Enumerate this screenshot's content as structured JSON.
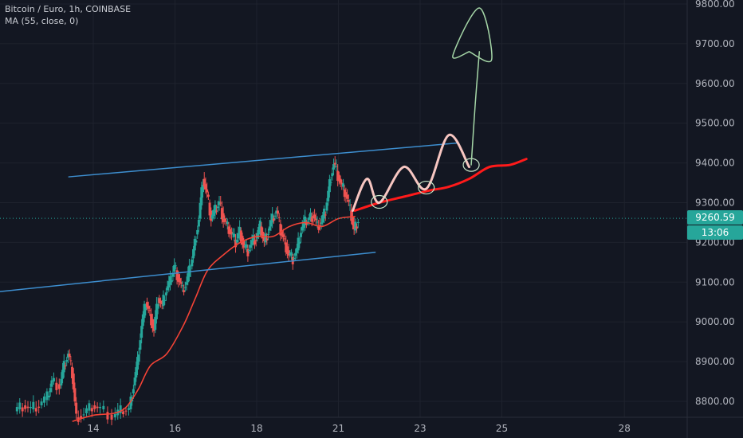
{
  "legend": {
    "symbol_line": "Bitcoin / Euro, 1h, COINBASE",
    "indicator_line": "MA (55, close, 0)"
  },
  "price_badge": {
    "price": "9260.59",
    "countdown": "13:06",
    "color": "#26a69a"
  },
  "colors": {
    "background": "#131722",
    "grid": "#1e222d",
    "axis_text": "#b2b5be",
    "up": "#26a69a",
    "down": "#ef5350",
    "ma": "#f44336",
    "channel": "#3d8ecf",
    "projection_wave": "#f7c6c1",
    "projection_ma": "#ff1a1a",
    "arrow": "#a5d6a7",
    "circle": "#c8e6c9"
  },
  "chart_data": {
    "type": "candlestick",
    "x_axis": {
      "ticks": [
        "14",
        "16",
        "18",
        "21",
        "23",
        "25",
        "28"
      ],
      "tick_values": [
        14,
        16,
        18,
        20,
        22,
        24,
        27
      ]
    },
    "y_axis": {
      "ticks": [
        "8800.00",
        "8900.00",
        "9000.00",
        "9100.00",
        "9200.00",
        "9300.00",
        "9400.00",
        "9500.00",
        "9600.00",
        "9700.00",
        "9800.00"
      ],
      "ylim": [
        8770,
        9800
      ]
    },
    "xlim": [
      12.0,
      28.4
    ],
    "last_price": 9260.59,
    "candles_hint": "approximate path of close prices, day units",
    "close_path": [
      [
        12.1,
        8775
      ],
      [
        12.3,
        8790
      ],
      [
        12.5,
        8780
      ],
      [
        12.7,
        8790
      ],
      [
        12.9,
        8810
      ],
      [
        13.0,
        8850
      ],
      [
        13.2,
        8840
      ],
      [
        13.3,
        8890
      ],
      [
        13.4,
        8920
      ],
      [
        13.5,
        8870
      ],
      [
        13.6,
        8760
      ],
      [
        13.8,
        8770
      ],
      [
        14.0,
        8790
      ],
      [
        14.2,
        8780
      ],
      [
        14.5,
        8760
      ],
      [
        14.7,
        8775
      ],
      [
        14.9,
        8780
      ],
      [
        15.0,
        8840
      ],
      [
        15.1,
        8900
      ],
      [
        15.2,
        8990
      ],
      [
        15.3,
        9050
      ],
      [
        15.4,
        9020
      ],
      [
        15.5,
        8980
      ],
      [
        15.6,
        9060
      ],
      [
        15.7,
        9040
      ],
      [
        15.8,
        9080
      ],
      [
        15.9,
        9100
      ],
      [
        16.0,
        9140
      ],
      [
        16.1,
        9110
      ],
      [
        16.2,
        9080
      ],
      [
        16.3,
        9100
      ],
      [
        16.4,
        9140
      ],
      [
        16.5,
        9200
      ],
      [
        16.6,
        9260
      ],
      [
        16.7,
        9360
      ],
      [
        16.8,
        9320
      ],
      [
        16.9,
        9260
      ],
      [
        17.0,
        9280
      ],
      [
        17.1,
        9300
      ],
      [
        17.2,
        9260
      ],
      [
        17.3,
        9240
      ],
      [
        17.4,
        9220
      ],
      [
        17.5,
        9200
      ],
      [
        17.6,
        9230
      ],
      [
        17.7,
        9190
      ],
      [
        17.8,
        9180
      ],
      [
        17.9,
        9200
      ],
      [
        18.0,
        9210
      ],
      [
        18.1,
        9240
      ],
      [
        18.2,
        9200
      ],
      [
        18.3,
        9230
      ],
      [
        18.4,
        9260
      ],
      [
        18.5,
        9280
      ],
      [
        18.6,
        9230
      ],
      [
        18.7,
        9200
      ],
      [
        18.8,
        9170
      ],
      [
        18.9,
        9160
      ],
      [
        19.0,
        9180
      ],
      [
        19.1,
        9230
      ],
      [
        19.2,
        9250
      ],
      [
        19.3,
        9260
      ],
      [
        19.4,
        9270
      ],
      [
        19.5,
        9240
      ],
      [
        19.6,
        9250
      ],
      [
        19.7,
        9280
      ],
      [
        19.8,
        9350
      ],
      [
        19.9,
        9400
      ],
      [
        20.0,
        9370
      ],
      [
        20.1,
        9340
      ],
      [
        20.2,
        9320
      ],
      [
        20.3,
        9280
      ],
      [
        20.4,
        9230
      ],
      [
        20.5,
        9260
      ]
    ],
    "ma_path": [
      [
        13.5,
        8750
      ],
      [
        14.0,
        8765
      ],
      [
        14.5,
        8770
      ],
      [
        14.8,
        8785
      ],
      [
        15.1,
        8830
      ],
      [
        15.4,
        8890
      ],
      [
        15.8,
        8920
      ],
      [
        16.2,
        8990
      ],
      [
        16.5,
        9060
      ],
      [
        16.8,
        9130
      ],
      [
        17.2,
        9170
      ],
      [
        17.6,
        9200
      ],
      [
        18.0,
        9215
      ],
      [
        18.4,
        9215
      ],
      [
        18.8,
        9240
      ],
      [
        19.2,
        9250
      ],
      [
        19.6,
        9240
      ],
      [
        20.0,
        9260
      ],
      [
        20.4,
        9265
      ]
    ],
    "annotations": {
      "channel_upper": [
        [
          13.4,
          9365
        ],
        [
          22.9,
          9450
        ]
      ],
      "channel_lower": [
        [
          11.4,
          9073
        ],
        [
          20.9,
          9175
        ]
      ],
      "projection_wave": [
        [
          20.35,
          9280
        ],
        [
          20.7,
          9360
        ],
        [
          21.0,
          9300
        ],
        [
          21.6,
          9390
        ],
        [
          22.15,
          9335
        ],
        [
          22.7,
          9470
        ],
        [
          23.2,
          9390
        ]
      ],
      "projection_ma": [
        [
          20.4,
          9280
        ],
        [
          21.0,
          9300
        ],
        [
          21.6,
          9315
        ],
        [
          22.2,
          9330
        ],
        [
          22.7,
          9340
        ],
        [
          23.2,
          9360
        ],
        [
          23.7,
          9390
        ],
        [
          24.2,
          9395
        ],
        [
          24.6,
          9410
        ]
      ],
      "circles": [
        [
          21.0,
          9302
        ],
        [
          22.15,
          9338
        ],
        [
          23.25,
          9395
        ]
      ],
      "arrow_stem": [
        [
          23.25,
          9395
        ],
        [
          23.35,
          9550
        ],
        [
          23.45,
          9680
        ]
      ],
      "arrow_head": [
        [
          23.2,
          9680
        ],
        [
          22.8,
          9670
        ],
        [
          23.45,
          9790
        ],
        [
          23.75,
          9660
        ],
        [
          23.2,
          9680
        ]
      ]
    }
  }
}
